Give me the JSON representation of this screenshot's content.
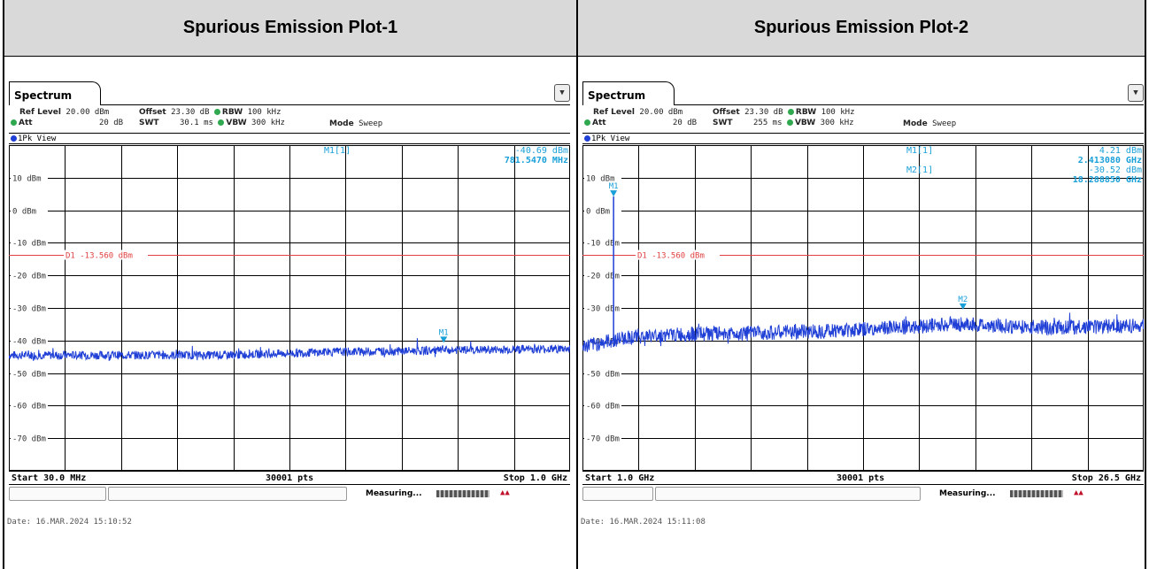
{
  "headers": [
    "Spurious Emission Plot-1",
    "Spurious Emission Plot-2"
  ],
  "common": {
    "tab_title": "Spectrum",
    "ref_level_label": "Ref Level",
    "ref_level_value": "20.00 dBm",
    "att_label": "Att",
    "att_value": "20 dB",
    "offset_label": "Offset",
    "offset_value": "23.30 dB",
    "swt_label": "SWT",
    "rbw_label": "RBW",
    "rbw_value": "100 kHz",
    "vbw_label": "VBW",
    "vbw_value": "300 kHz",
    "mode_label": "Mode",
    "mode_value": "Sweep",
    "view_label": "1Pk View",
    "measuring": "Measuring...",
    "colors": {
      "trace": "#1f3fd6",
      "marker": "#1aa0d8",
      "display_line": "#e04040",
      "grid": "#000000"
    }
  },
  "chart_data": [
    {
      "type": "line",
      "title": "Spurious Emission Plot-1",
      "swt_value": "30.1 ms",
      "ylim": [
        -80,
        20
      ],
      "yticks": [
        10,
        0,
        -10,
        -20,
        -30,
        -40,
        -50,
        -60,
        -70
      ],
      "ytick_labels": [
        "10 dBm",
        "0 dBm",
        "-10 dBm",
        "-20 dBm",
        "-30 dBm",
        "-40 dBm",
        "-50 dBm",
        "-60 dBm",
        "-70 dBm"
      ],
      "xlim_mhz": [
        30,
        1000
      ],
      "start_label": "Start 30.0 MHz",
      "points_label": "30001 pts",
      "stop_label": "Stop 1.0 GHz",
      "display_line": {
        "label": "D1 -13.560 dBm",
        "value": -13.56
      },
      "trace_envelope": {
        "x_mhz": [
          30,
          200,
          400,
          600,
          800,
          1000
        ],
        "level_dbm": [
          -44.5,
          -44.5,
          -44.5,
          -43.5,
          -43,
          -42.5
        ]
      },
      "markers": [
        {
          "name": "M1",
          "x_mhz": 781.547,
          "y_dbm": -40.69
        }
      ],
      "marker_table": [
        {
          "label": "M1[1]",
          "value": "-40.69 dBm",
          "freq": "781.5470 MHz"
        }
      ],
      "date": "Date: 16.MAR.2024  15:10:52"
    },
    {
      "type": "line",
      "title": "Spurious Emission Plot-2",
      "swt_value": "255 ms",
      "ylim": [
        -80,
        20
      ],
      "yticks": [
        10,
        0,
        -10,
        -20,
        -30,
        -40,
        -50,
        -60,
        -70
      ],
      "ytick_labels": [
        "10 dBm",
        "0 dBm",
        "-10 dBm",
        "-20 dBm",
        "-30 dBm",
        "-40 dBm",
        "-50 dBm",
        "-60 dBm",
        "-70 dBm"
      ],
      "xlim_ghz": [
        1.0,
        26.5
      ],
      "start_label": "Start 1.0 GHz",
      "points_label": "30001 pts",
      "stop_label": "Stop 26.5 GHz",
      "display_line": {
        "label": "D1 -13.560 dBm",
        "value": -13.56
      },
      "trace_envelope": {
        "x_ghz": [
          1.0,
          3.0,
          6.0,
          10.0,
          14.0,
          18.0,
          22.0,
          26.5
        ],
        "level_dbm": [
          -42,
          -39,
          -38,
          -37.5,
          -36.5,
          -35,
          -36,
          -35.5
        ]
      },
      "markers": [
        {
          "name": "M1",
          "x_ghz": 2.41308,
          "y_dbm": 4.21
        },
        {
          "name": "M2",
          "x_ghz": 18.28885,
          "y_dbm": -30.52
        }
      ],
      "marker_table": [
        {
          "label": "M1[1]",
          "value": "4.21 dBm",
          "freq": "2.413080 GHz"
        },
        {
          "label": "M2[1]",
          "value": "-30.52 dBm",
          "freq": "18.288850 GHz"
        }
      ],
      "date": "Date: 16.MAR.2024  15:11:08"
    }
  ]
}
